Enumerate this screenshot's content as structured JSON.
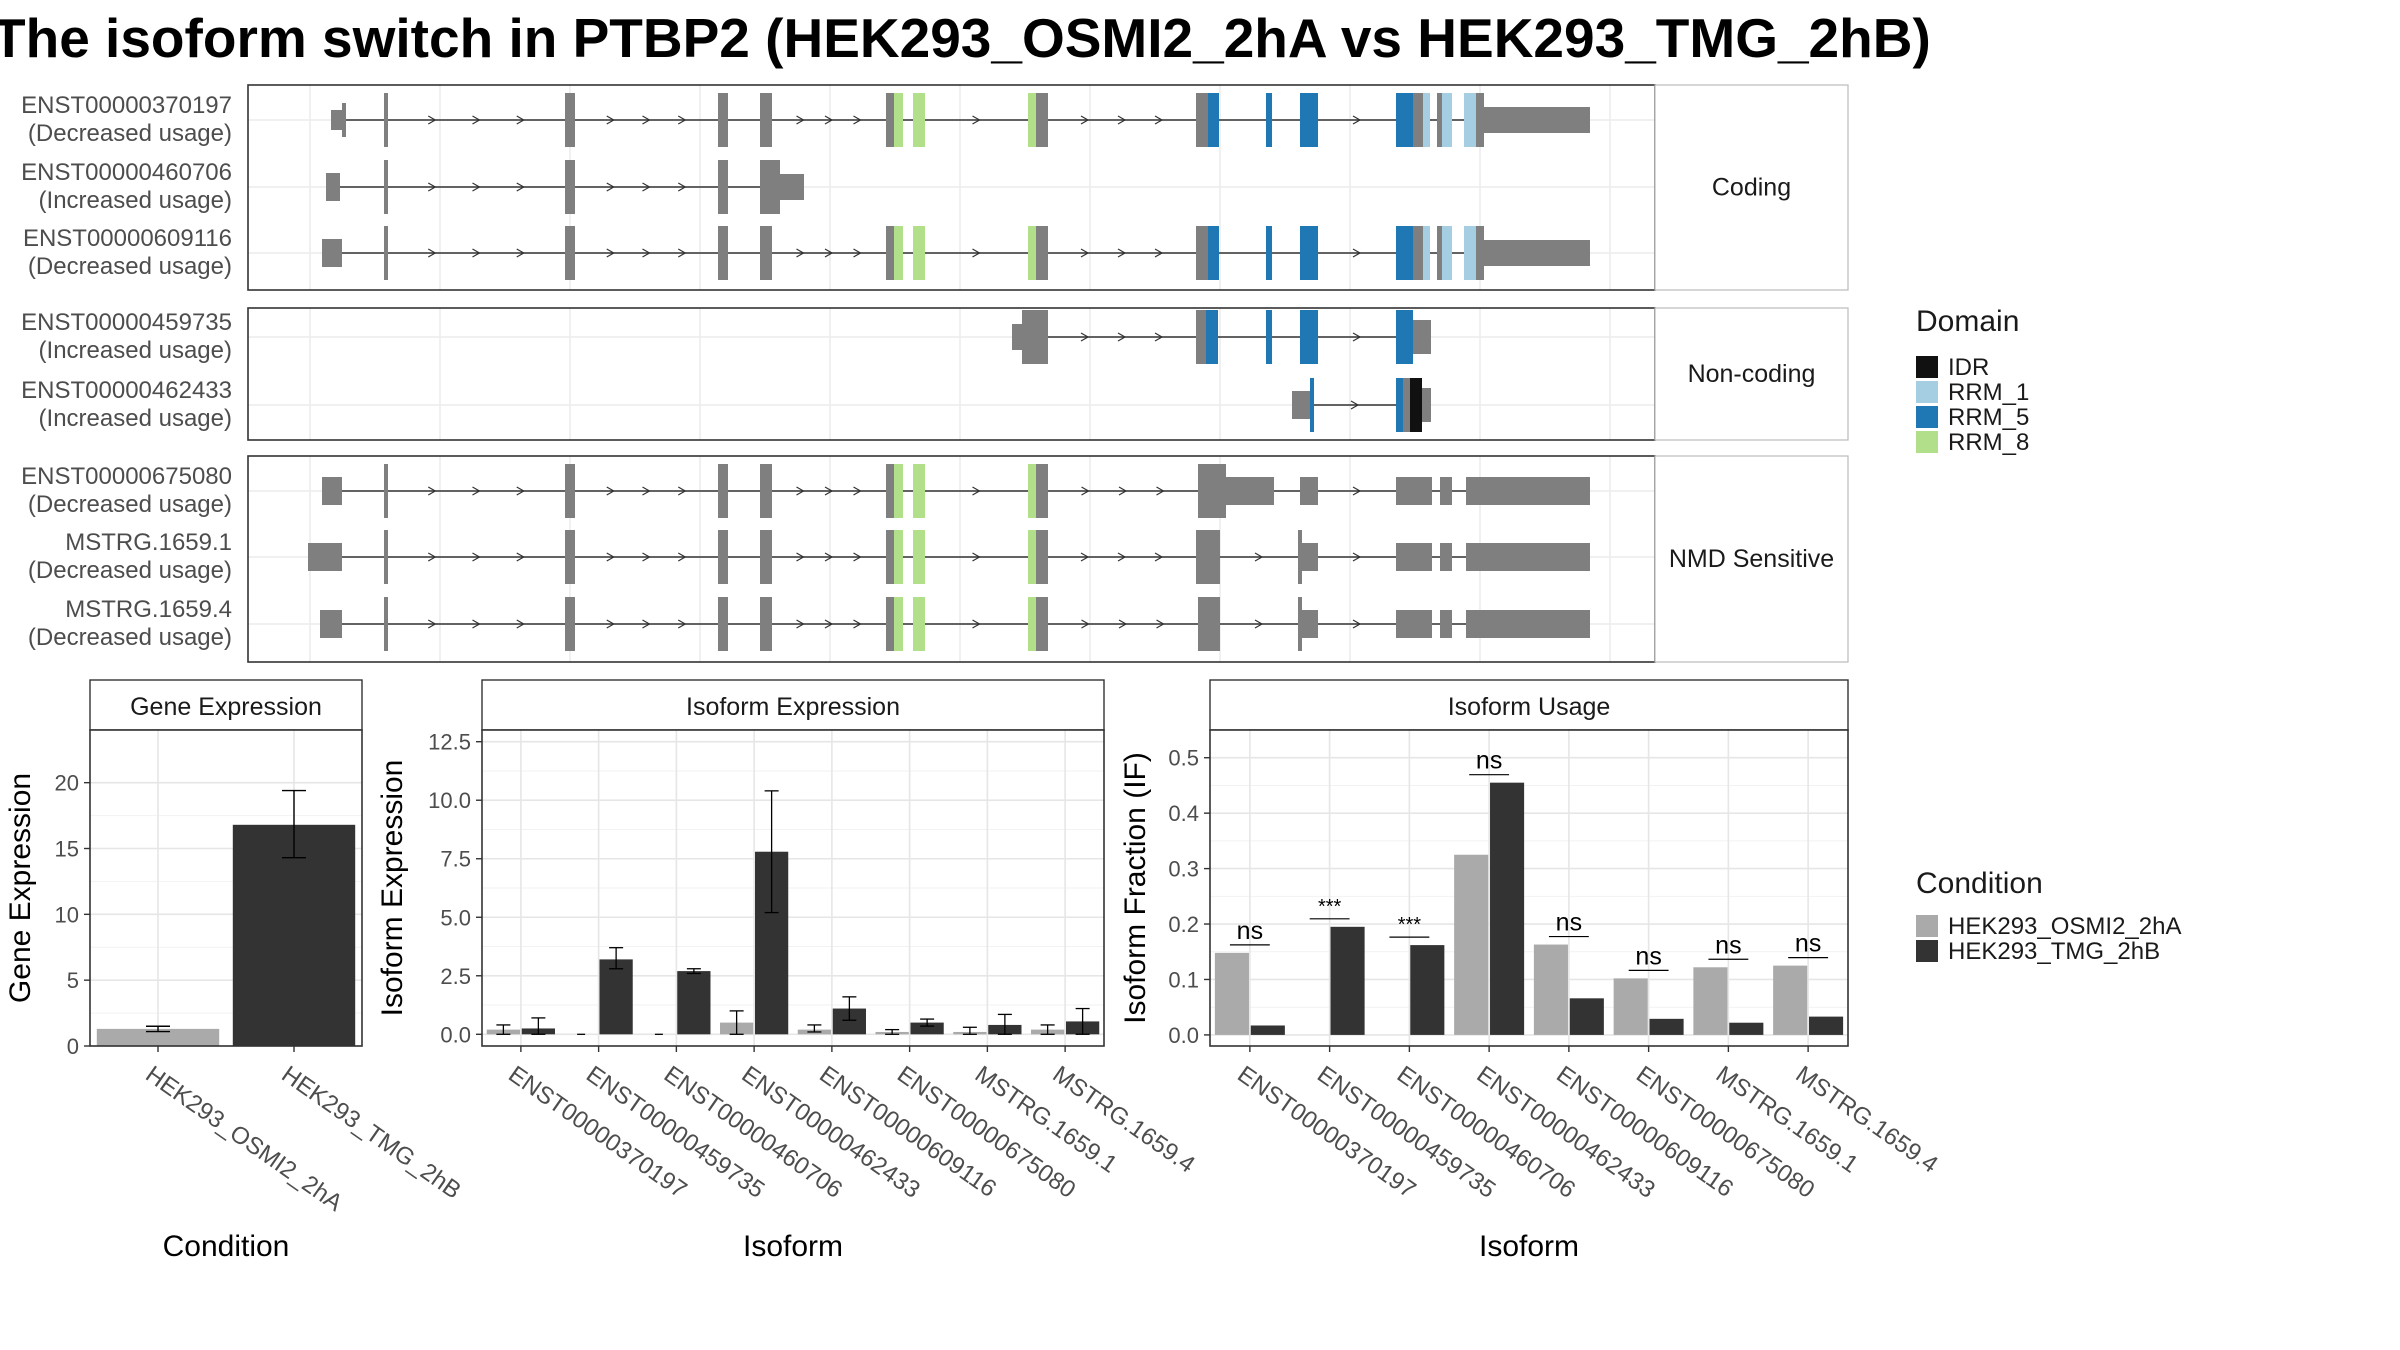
{
  "title": "The isoform switch in PTBP2 (HEK293_OSMI2_2hA vs HEK293_TMG_2hB)",
  "colors": {
    "exon": "#7f7f7f",
    "domains": {
      "IDR": "#111111",
      "RRM_1": "#a6cee3",
      "RRM_5": "#1f78b4",
      "RRM_8": "#b2df8a"
    },
    "conditions": {
      "HEK293_OSMI2_2hA": "#aaaaaa",
      "HEK293_TMG_2hB": "#333333"
    }
  },
  "structure": {
    "panels": [
      {
        "label": "Coding",
        "transcripts": [
          {
            "id": "ENST00000370197",
            "usage": "(Decreased usage)"
          },
          {
            "id": "ENST00000460706",
            "usage": "(Increased usage)"
          },
          {
            "id": "ENST00000609116",
            "usage": "(Decreased usage)"
          }
        ]
      },
      {
        "label": "Non-coding",
        "transcripts": [
          {
            "id": "ENST00000459735",
            "usage": "(Increased usage)"
          },
          {
            "id": "ENST00000462433",
            "usage": "(Increased usage)"
          }
        ]
      },
      {
        "label": "NMD Sensitive",
        "transcripts": [
          {
            "id": "ENST00000675080",
            "usage": "(Decreased usage)"
          },
          {
            "id": "MSTRG.1659.1",
            "usage": "(Decreased usage)"
          },
          {
            "id": "MSTRG.1659.4",
            "usage": "(Decreased usage)"
          }
        ]
      }
    ]
  },
  "legends": {
    "domain": {
      "title": "Domain",
      "items": [
        "IDR",
        "RRM_1",
        "RRM_5",
        "RRM_8"
      ]
    },
    "condition": {
      "title": "Condition",
      "items": [
        "HEK293_OSMI2_2hA",
        "HEK293_TMG_2hB"
      ]
    }
  },
  "chart_data": [
    {
      "type": "bar",
      "title": "Gene Expression",
      "xlabel": "Condition",
      "ylabel": "Gene Expression",
      "ylim": [
        0,
        24
      ],
      "yticks": [
        0,
        5,
        10,
        15,
        20
      ],
      "categories": [
        "HEK293_OSMI2_2hA",
        "HEK293_TMG_2hB"
      ],
      "values": [
        1.3,
        16.8
      ],
      "errors": [
        [
          1.1,
          1.5
        ],
        [
          14.3,
          19.4
        ]
      ]
    },
    {
      "type": "bar",
      "title": "Isoform Expression",
      "xlabel": "Isoform",
      "ylabel": "Isoform Expression",
      "ylim": [
        -0.5,
        13.0
      ],
      "yticks": [
        0.0,
        2.5,
        5.0,
        7.5,
        10.0,
        12.5
      ],
      "categories": [
        "ENST00000370197",
        "ENST00000459735",
        "ENST00000460706",
        "ENST00000462433",
        "ENST00000609116",
        "ENST00000675080",
        "MSTRG.1659.1",
        "MSTRG.1659.4"
      ],
      "series": [
        {
          "name": "HEK293_OSMI2_2hA",
          "values": [
            0.2,
            0.0,
            0.0,
            0.5,
            0.2,
            0.1,
            0.1,
            0.2
          ],
          "errors": [
            [
              0.0,
              0.4
            ],
            [
              0.0,
              0.0
            ],
            [
              0.0,
              0.0
            ],
            [
              0.0,
              1.0
            ],
            [
              0.1,
              0.4
            ],
            [
              0.0,
              0.2
            ],
            [
              0.0,
              0.3
            ],
            [
              0.0,
              0.4
            ]
          ]
        },
        {
          "name": "HEK293_TMG_2hB",
          "values": [
            0.25,
            3.2,
            2.7,
            7.8,
            1.1,
            0.5,
            0.4,
            0.55
          ],
          "errors": [
            [
              0.0,
              0.7
            ],
            [
              2.8,
              3.7
            ],
            [
              2.6,
              2.8
            ],
            [
              5.2,
              10.4
            ],
            [
              0.6,
              1.6
            ],
            [
              0.35,
              0.65
            ],
            [
              0.0,
              0.85
            ],
            [
              0.0,
              1.1
            ]
          ]
        }
      ]
    },
    {
      "type": "bar",
      "title": "Isoform Usage",
      "xlabel": "Isoform",
      "ylabel": "Isoform Fraction (IF)",
      "ylim": [
        -0.02,
        0.55
      ],
      "yticks": [
        0.0,
        0.1,
        0.2,
        0.3,
        0.4,
        0.5
      ],
      "categories": [
        "ENST00000370197",
        "ENST00000459735",
        "ENST00000460706",
        "ENST00000462433",
        "ENST00000609116",
        "ENST00000675080",
        "MSTRG.1659.1",
        "MSTRG.1659.4"
      ],
      "series": [
        {
          "name": "HEK293_OSMI2_2hA",
          "values": [
            0.148,
            0.0,
            0.0,
            0.325,
            0.163,
            0.102,
            0.122,
            0.125
          ]
        },
        {
          "name": "HEK293_TMG_2hB",
          "values": [
            0.017,
            0.195,
            0.162,
            0.455,
            0.066,
            0.029,
            0.022,
            0.033
          ]
        }
      ],
      "significance": [
        "ns",
        "***",
        "***",
        "ns",
        "ns",
        "ns",
        "ns",
        "ns"
      ]
    }
  ]
}
